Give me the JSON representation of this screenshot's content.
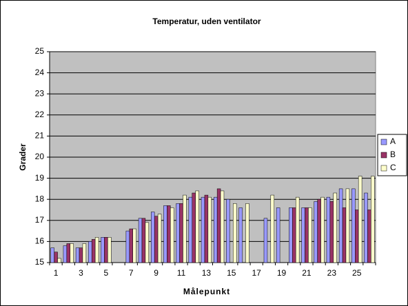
{
  "chart_data": {
    "type": "bar",
    "title": "Temperatur, uden ventilator",
    "x_label": "Målepunkt",
    "y_label": "Grader",
    "categories": [
      "1",
      null,
      "3",
      null,
      "5",
      null,
      "7",
      null,
      "9",
      null,
      "11",
      null,
      "13",
      null,
      "15",
      null,
      "17",
      null,
      "19",
      null,
      "21",
      null,
      "23",
      null,
      "25",
      null
    ],
    "series": [
      {
        "name": "A",
        "color": "#9999ff",
        "values": [
          15.7,
          15.8,
          15.7,
          16.0,
          16.2,
          null,
          16.5,
          17.1,
          17.4,
          17.7,
          17.8,
          18.1,
          18.1,
          18.1,
          18.0,
          17.6,
          null,
          17.1,
          17.6,
          17.6,
          17.6,
          17.9,
          18.1,
          18.5,
          18.5,
          18.3
        ]
      },
      {
        "name": "B",
        "color": "#993366",
        "values": [
          15.5,
          15.9,
          15.7,
          16.1,
          16.2,
          null,
          16.6,
          17.1,
          17.2,
          17.7,
          17.8,
          18.3,
          18.2,
          18.5,
          null,
          null,
          null,
          null,
          null,
          17.6,
          17.6,
          18.0,
          17.9,
          17.6,
          17.5,
          17.5
        ]
      },
      {
        "name": "C",
        "color": "#ffffcc",
        "values": [
          15.2,
          15.9,
          15.9,
          16.2,
          16.2,
          null,
          16.6,
          16.9,
          17.3,
          17.6,
          18.2,
          18.4,
          18.1,
          18.4,
          17.8,
          17.8,
          null,
          18.2,
          null,
          18.1,
          17.6,
          18.1,
          18.3,
          18.5,
          19.1,
          19.1
        ]
      }
    ],
    "ylim": [
      15,
      25
    ],
    "yticks": [
      15,
      16,
      17,
      18,
      19,
      20,
      21,
      22,
      23,
      24,
      25
    ],
    "grid": true,
    "legend": "right"
  }
}
